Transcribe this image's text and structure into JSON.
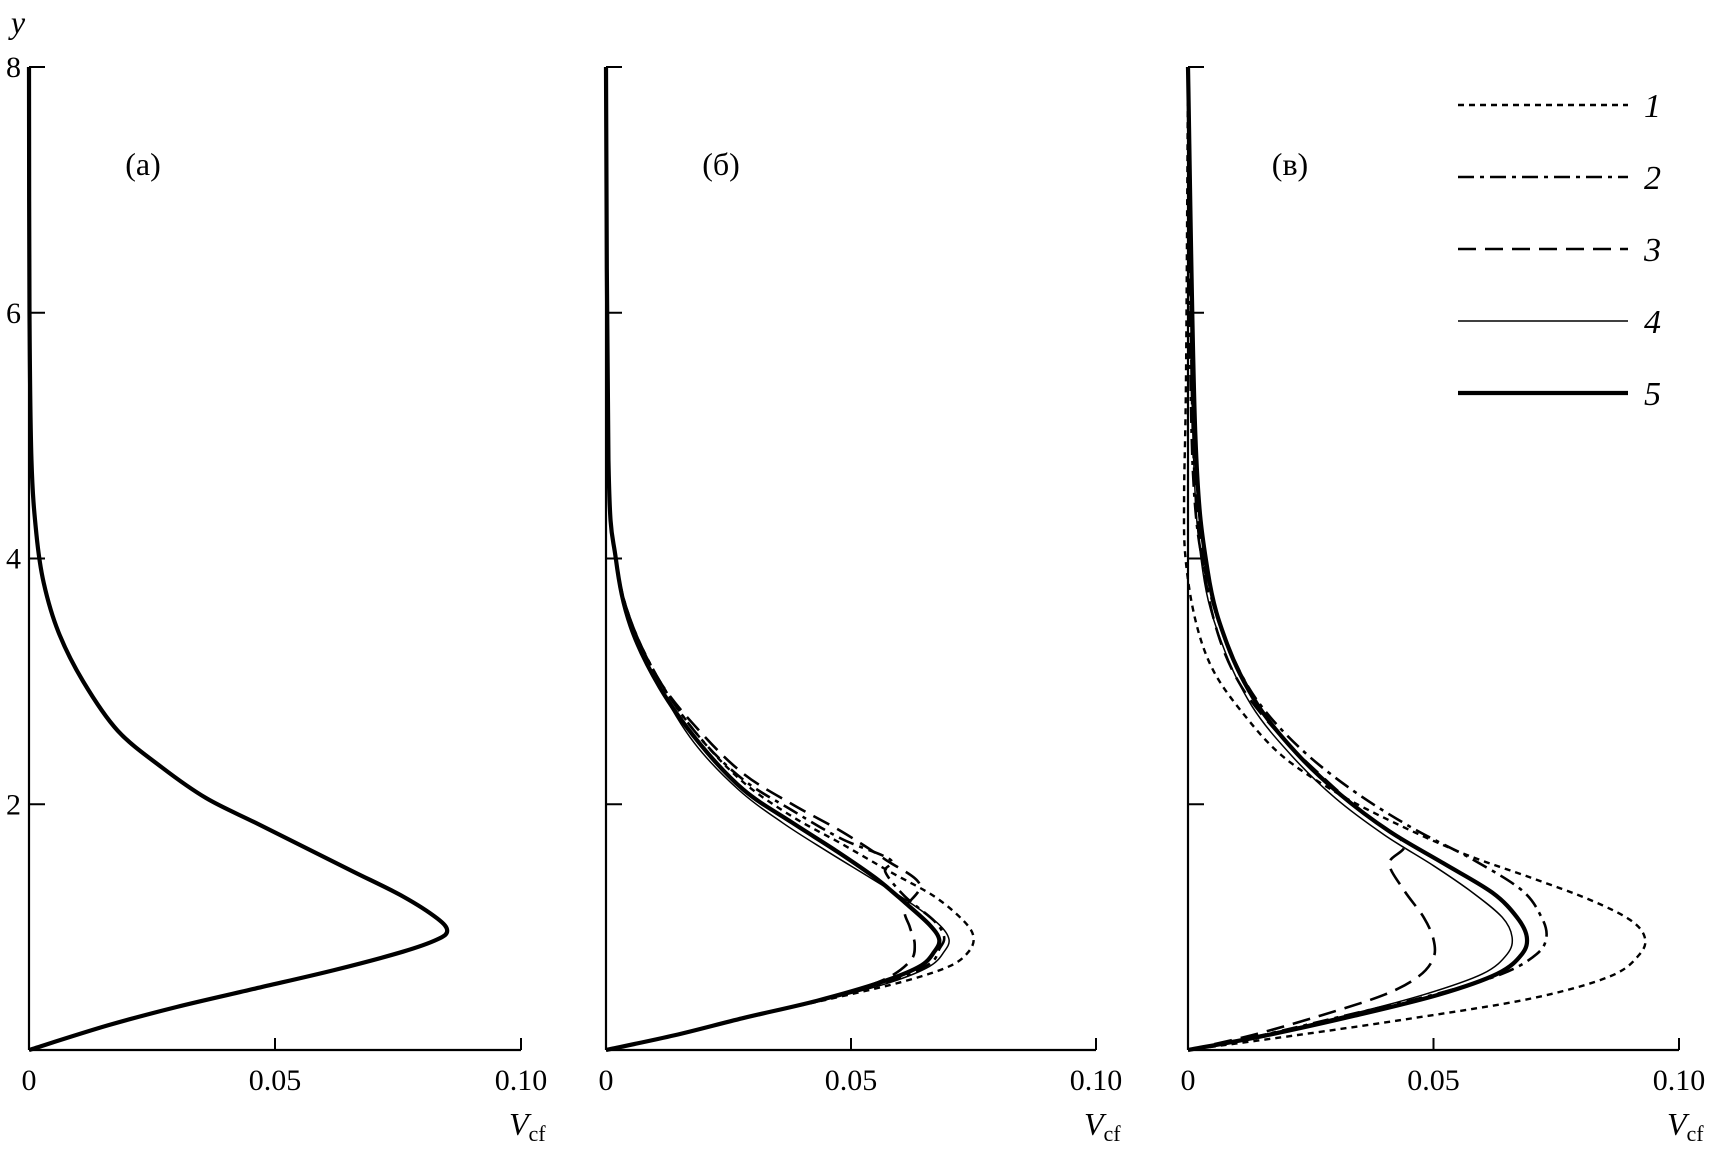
{
  "chart_data": [
    {
      "type": "line",
      "panel_label": "(а)",
      "ylabel": "y",
      "xlabel_main": "V",
      "xlabel_sub": "cf",
      "xlim": [
        0,
        0.1
      ],
      "ylim": [
        0,
        8
      ],
      "xticks": [
        "0",
        "0.05",
        "0.10"
      ],
      "yticks": [
        "0",
        "2",
        "4",
        "6",
        "8"
      ],
      "series": [
        {
          "style": "thick-solid",
          "x": [
            0,
            0.016,
            0.03,
            0.046,
            0.062,
            0.076,
            0.083,
            0.085,
            0.083,
            0.076,
            0.066,
            0.056,
            0.046,
            0.036,
            0.027,
            0.018,
            0.011,
            0.006,
            0.003,
            0.0015,
            0.0005,
            0.0001,
            0
          ],
          "y": [
            0,
            0.2,
            0.35,
            0.5,
            0.65,
            0.8,
            0.9,
            0.97,
            1.07,
            1.25,
            1.45,
            1.65,
            1.85,
            2.05,
            2.3,
            2.6,
            3.0,
            3.4,
            3.8,
            4.2,
            4.8,
            6.0,
            8.0
          ]
        }
      ]
    },
    {
      "type": "line",
      "panel_label": "(б)",
      "xlabel_main": "V",
      "xlabel_sub": "cf",
      "xlim": [
        0,
        0.1
      ],
      "ylim": [
        0,
        8
      ],
      "xticks": [
        "0",
        "0.05",
        "0.10"
      ],
      "yticks": [
        "0",
        "2",
        "4",
        "6",
        "8"
      ],
      "series": [
        {
          "name": "1",
          "style": "dotted",
          "x": [
            0,
            0.014,
            0.028,
            0.044,
            0.06,
            0.07,
            0.074,
            0.075,
            0.073,
            0.067,
            0.058,
            0.048,
            0.038,
            0.028,
            0.019,
            0.011,
            0.005,
            0.002,
            0.0005,
            0
          ],
          "y": [
            0,
            0.12,
            0.26,
            0.4,
            0.55,
            0.68,
            0.8,
            0.92,
            1.05,
            1.25,
            1.45,
            1.68,
            1.9,
            2.18,
            2.55,
            3.0,
            3.5,
            4.0,
            4.8,
            8.0
          ]
        },
        {
          "name": "2",
          "style": "dash-dot",
          "x": [
            0,
            0.014,
            0.028,
            0.043,
            0.058,
            0.066,
            0.068,
            0.069,
            0.067,
            0.061,
            0.057,
            0.058,
            0.048,
            0.038,
            0.028,
            0.019,
            0.011,
            0.005,
            0.002,
            0.0005,
            0
          ],
          "y": [
            0,
            0.12,
            0.26,
            0.4,
            0.56,
            0.7,
            0.82,
            0.92,
            1.05,
            1.25,
            1.45,
            1.55,
            1.72,
            1.95,
            2.2,
            2.55,
            3.0,
            3.5,
            4.0,
            4.8,
            8.0
          ]
        },
        {
          "name": "3",
          "style": "dashed",
          "x": [
            0,
            0.014,
            0.028,
            0.043,
            0.056,
            0.062,
            0.063,
            0.062,
            0.061,
            0.064,
            0.057,
            0.048,
            0.038,
            0.028,
            0.019,
            0.011,
            0.005,
            0.002,
            0.0005,
            0
          ],
          "y": [
            0,
            0.12,
            0.26,
            0.4,
            0.56,
            0.72,
            0.86,
            1.0,
            1.15,
            1.35,
            1.55,
            1.78,
            2.0,
            2.25,
            2.6,
            3.0,
            3.5,
            4.0,
            4.8,
            8.0
          ]
        },
        {
          "name": "4",
          "style": "thin-solid",
          "x": [
            0,
            0.014,
            0.028,
            0.044,
            0.058,
            0.066,
            0.069,
            0.07,
            0.068,
            0.062,
            0.054,
            0.045,
            0.036,
            0.027,
            0.018,
            0.011,
            0.005,
            0.002,
            0.0005,
            0
          ],
          "y": [
            0,
            0.12,
            0.26,
            0.4,
            0.55,
            0.68,
            0.8,
            0.9,
            1.02,
            1.2,
            1.4,
            1.62,
            1.85,
            2.12,
            2.5,
            2.95,
            3.45,
            4.0,
            4.8,
            8.0
          ]
        },
        {
          "name": "5",
          "style": "thick-solid",
          "x": [
            0,
            0.014,
            0.028,
            0.043,
            0.056,
            0.064,
            0.067,
            0.068,
            0.066,
            0.061,
            0.055,
            0.047,
            0.038,
            0.028,
            0.019,
            0.011,
            0.005,
            0.002,
            0.0005,
            0
          ],
          "y": [
            0,
            0.12,
            0.26,
            0.4,
            0.55,
            0.68,
            0.8,
            0.9,
            1.02,
            1.2,
            1.4,
            1.62,
            1.85,
            2.12,
            2.5,
            2.95,
            3.45,
            4.0,
            4.8,
            8.0
          ]
        }
      ]
    },
    {
      "type": "line",
      "panel_label": "(в)",
      "xlabel_main": "V",
      "xlabel_sub": "cf",
      "xlim": [
        0,
        0.1
      ],
      "ylim": [
        0,
        8
      ],
      "xticks": [
        "0",
        "0.05",
        "0.10"
      ],
      "yticks": [
        "0",
        "2",
        "4",
        "6",
        "8"
      ],
      "series": [
        {
          "name": "1",
          "style": "dotted",
          "x": [
            0,
            0.022,
            0.046,
            0.07,
            0.086,
            0.092,
            0.093,
            0.09,
            0.082,
            0.07,
            0.056,
            0.042,
            0.03,
            0.019,
            0.011,
            0.005,
            0.0015,
            -0.0005,
            -0.0008,
            -0.0004,
            0
          ],
          "y": [
            0,
            0.12,
            0.26,
            0.42,
            0.6,
            0.78,
            0.92,
            1.06,
            1.22,
            1.4,
            1.6,
            1.85,
            2.1,
            2.4,
            2.75,
            3.1,
            3.5,
            4.0,
            4.5,
            5.5,
            8.0
          ]
        },
        {
          "name": "2",
          "style": "dash-dot",
          "x": [
            0,
            0.015,
            0.032,
            0.05,
            0.064,
            0.071,
            0.073,
            0.072,
            0.068,
            0.058,
            0.046,
            0.034,
            0.023,
            0.014,
            0.008,
            0.004,
            0.0015,
            0.0005,
            0
          ],
          "y": [
            0,
            0.12,
            0.28,
            0.45,
            0.62,
            0.78,
            0.92,
            1.08,
            1.3,
            1.55,
            1.8,
            2.1,
            2.45,
            2.85,
            3.3,
            3.8,
            4.4,
            5.5,
            8.0
          ]
        },
        {
          "name": "3",
          "style": "dashed",
          "x": [
            0,
            0.013,
            0.027,
            0.04,
            0.047,
            0.05,
            0.05,
            0.048,
            0.044,
            0.041,
            0.044,
            0.036,
            0.028,
            0.019,
            0.011,
            0.006,
            0.003,
            0.001,
            0
          ],
          "y": [
            0,
            0.12,
            0.28,
            0.45,
            0.6,
            0.75,
            0.9,
            1.08,
            1.3,
            1.52,
            1.68,
            1.92,
            2.2,
            2.55,
            2.95,
            3.4,
            4.0,
            5.0,
            8.0
          ]
        },
        {
          "name": "4",
          "style": "thin-solid",
          "x": [
            0,
            0.015,
            0.032,
            0.048,
            0.06,
            0.065,
            0.066,
            0.064,
            0.058,
            0.05,
            0.04,
            0.03,
            0.021,
            0.013,
            0.007,
            0.003,
            0.001,
            0
          ],
          "y": [
            0,
            0.12,
            0.28,
            0.45,
            0.62,
            0.78,
            0.92,
            1.08,
            1.28,
            1.5,
            1.75,
            2.05,
            2.4,
            2.8,
            3.3,
            3.9,
            5.0,
            8.0
          ]
        },
        {
          "name": "5",
          "style": "thick-solid",
          "x": [
            0,
            0.016,
            0.034,
            0.051,
            0.063,
            0.068,
            0.069,
            0.067,
            0.062,
            0.052,
            0.041,
            0.031,
            0.022,
            0.014,
            0.008,
            0.004,
            0.0015,
            0
          ],
          "y": [
            0,
            0.12,
            0.28,
            0.45,
            0.62,
            0.78,
            0.92,
            1.08,
            1.28,
            1.52,
            1.78,
            2.08,
            2.42,
            2.82,
            3.3,
            3.9,
            5.0,
            8.0
          ]
        }
      ]
    }
  ],
  "legend": {
    "placement": "top-right",
    "entries": [
      {
        "label": "1",
        "style": "dotted"
      },
      {
        "label": "2",
        "style": "dash-dot"
      },
      {
        "label": "3",
        "style": "dashed"
      },
      {
        "label": "4",
        "style": "thin-solid"
      },
      {
        "label": "5",
        "style": "thick-solid"
      }
    ]
  }
}
